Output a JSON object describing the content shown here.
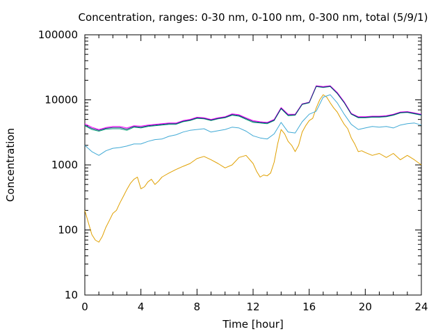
{
  "chart_data": {
    "type": "line",
    "title": "Concentration, ranges: 0-30 nm, 0-100 nm, 0-300 nm, total (5/9/1)",
    "xlabel": "Time [hour]",
    "ylabel": "Concentration",
    "xlim": [
      0,
      24
    ],
    "ylim": [
      10,
      100000
    ],
    "yscale": "log",
    "grid": false,
    "x_ticks": [
      "0",
      "4",
      "8",
      "12",
      "16",
      "20",
      "24"
    ],
    "y_ticks": [
      "10",
      "100",
      "1000",
      "10000",
      "100000"
    ],
    "series_colors": {
      "0-30 nm": "#e0a000",
      "0-100 nm": "#3fa9d5",
      "0-300 nm": "#009e73",
      "total": "#ff00ff",
      "total_overlay": "#1f2a80"
    },
    "series": [
      {
        "key": "0-30 nm",
        "color": "#e0a000",
        "x": [
          0,
          0.25,
          0.5,
          0.75,
          1.0,
          1.25,
          1.5,
          1.75,
          2.0,
          2.25,
          2.5,
          2.75,
          3.0,
          3.25,
          3.5,
          3.75,
          4.0,
          4.25,
          4.5,
          4.75,
          5.0,
          5.25,
          5.5,
          5.75,
          6.0,
          6.5,
          7.0,
          7.5,
          8.0,
          8.5,
          9.0,
          9.5,
          10.0,
          10.5,
          11.0,
          11.5,
          12.0,
          12.25,
          12.5,
          12.75,
          13.0,
          13.25,
          13.5,
          13.75,
          14.0,
          14.25,
          14.5,
          14.75,
          15.0,
          15.25,
          15.5,
          15.75,
          16.0,
          16.25,
          16.5,
          16.75,
          17.0,
          17.25,
          17.5,
          17.75,
          18.0,
          18.25,
          18.5,
          18.75,
          19.0,
          19.25,
          19.5,
          19.75,
          20.0,
          20.5,
          21.0,
          21.5,
          22.0,
          22.5,
          23.0,
          23.5,
          24.0
        ],
        "y": [
          200,
          130,
          85,
          70,
          65,
          80,
          110,
          140,
          180,
          200,
          260,
          330,
          420,
          520,
          600,
          650,
          430,
          460,
          550,
          600,
          500,
          560,
          650,
          700,
          750,
          850,
          950,
          1050,
          1250,
          1350,
          1200,
          1050,
          900,
          1000,
          1300,
          1400,
          1050,
          800,
          650,
          700,
          680,
          750,
          1100,
          2100,
          3500,
          3000,
          2300,
          2000,
          1600,
          2000,
          3200,
          4000,
          4800,
          5200,
          7500,
          10000,
          12000,
          11000,
          9000,
          7500,
          6500,
          5200,
          4200,
          3600,
          2600,
          2100,
          1600,
          1650,
          1550,
          1400,
          1500,
          1300,
          1500,
          1200,
          1400,
          1200,
          1000
        ]
      },
      {
        "key": "0-100 nm",
        "color": "#3fa9d5",
        "x": [
          0,
          0.5,
          1.0,
          1.5,
          2.0,
          2.5,
          3.0,
          3.5,
          4.0,
          4.5,
          5.0,
          5.5,
          6.0,
          6.5,
          7.0,
          7.5,
          8.0,
          8.5,
          9.0,
          9.5,
          10.0,
          10.5,
          11.0,
          11.5,
          12.0,
          12.5,
          13.0,
          13.5,
          14.0,
          14.5,
          15.0,
          15.5,
          16.0,
          16.5,
          17.0,
          17.5,
          18.0,
          18.5,
          19.0,
          19.5,
          20.0,
          20.5,
          21.0,
          21.5,
          22.0,
          22.5,
          23.0,
          23.5,
          24.0
        ],
        "y": [
          2000,
          1600,
          1400,
          1650,
          1800,
          1850,
          1950,
          2100,
          2100,
          2300,
          2450,
          2500,
          2750,
          2900,
          3200,
          3400,
          3500,
          3600,
          3200,
          3350,
          3500,
          3800,
          3700,
          3300,
          2800,
          2600,
          2500,
          3000,
          4500,
          3200,
          3100,
          4600,
          6000,
          6700,
          11000,
          12000,
          9000,
          6000,
          4200,
          3500,
          3700,
          3900,
          3800,
          3900,
          3700,
          4100,
          4300,
          4400,
          4100
        ]
      },
      {
        "key": "0-300 nm",
        "color": "#009e73",
        "x": [
          0,
          0.5,
          1.0,
          1.5,
          2.0,
          2.5,
          3.0,
          3.5,
          4.0,
          4.5,
          5.0,
          5.5,
          6.0,
          6.5,
          7.0,
          7.5,
          8.0,
          8.5,
          9.0,
          9.5,
          10.0,
          10.5,
          11.0,
          11.5,
          12.0,
          12.5,
          13.0,
          13.5,
          14.0,
          14.5,
          15.0,
          15.5,
          16.0,
          16.5,
          17.0,
          17.5,
          18.0,
          18.5,
          19.0,
          19.5,
          20.0,
          20.5,
          21.0,
          21.5,
          22.0,
          22.5,
          23.0,
          23.5,
          24.0
        ],
        "y": [
          4000,
          3500,
          3300,
          3550,
          3600,
          3600,
          3400,
          3800,
          3700,
          3900,
          4000,
          4100,
          4200,
          4200,
          4600,
          4800,
          5200,
          5100,
          4800,
          5100,
          5300,
          5800,
          5600,
          5000,
          4500,
          4400,
          4300,
          4800,
          7300,
          5700,
          5800,
          8500,
          9000,
          16000,
          15500,
          16000,
          12500,
          9000,
          6000,
          5300,
          5300,
          5400,
          5400,
          5500,
          5800,
          6300,
          6400,
          6100,
          5800
        ]
      },
      {
        "key": "total",
        "color": "#ff00ff",
        "x": [
          0,
          0.5,
          1.0,
          1.5,
          2.0,
          2.5,
          3.0,
          3.5,
          4.0,
          4.5,
          5.0,
          5.5,
          6.0,
          6.5,
          7.0,
          7.5,
          8.0,
          8.5,
          9.0,
          9.5,
          10.0,
          10.5,
          11.0,
          11.5,
          12.0,
          12.5,
          13.0,
          13.5,
          14.0,
          14.5,
          15.0,
          15.5,
          16.0,
          16.5,
          17.0,
          17.5,
          18.0,
          18.5,
          19.0,
          19.5,
          20.0,
          20.5,
          21.0,
          21.5,
          22.0,
          22.5,
          23.0,
          23.5,
          24.0
        ],
        "y": [
          4300,
          3800,
          3500,
          3750,
          3900,
          3900,
          3700,
          4000,
          3950,
          4100,
          4200,
          4300,
          4400,
          4400,
          4800,
          5000,
          5400,
          5300,
          5000,
          5300,
          5500,
          6100,
          5900,
          5300,
          4800,
          4600,
          4500,
          5000,
          7600,
          6000,
          6000,
          8700,
          9200,
          16500,
          16000,
          16500,
          13000,
          9300,
          6200,
          5500,
          5500,
          5600,
          5600,
          5700,
          6000,
          6500,
          6600,
          6300,
          6000
        ]
      },
      {
        "key": "total_overlay",
        "color": "#1f2a80",
        "x": [
          0,
          0.5,
          1.0,
          1.5,
          2.0,
          2.5,
          3.0,
          3.5,
          4.0,
          4.5,
          5.0,
          5.5,
          6.0,
          6.5,
          7.0,
          7.5,
          8.0,
          8.5,
          9.0,
          9.5,
          10.0,
          10.5,
          11.0,
          11.5,
          12.0,
          12.5,
          13.0,
          13.5,
          14.0,
          14.5,
          15.0,
          15.5,
          16.0,
          16.5,
          17.0,
          17.5,
          18.0,
          18.5,
          19.0,
          19.5,
          20.0,
          20.5,
          21.0,
          21.5,
          22.0,
          22.5,
          23.0,
          23.5,
          24.0
        ],
        "y": [
          4100,
          3650,
          3400,
          3650,
          3750,
          3750,
          3550,
          3900,
          3800,
          4000,
          4100,
          4200,
          4300,
          4300,
          4700,
          4900,
          5300,
          5200,
          4900,
          5200,
          5400,
          5950,
          5750,
          5150,
          4650,
          4500,
          4400,
          4900,
          7450,
          5850,
          5900,
          8600,
          9100,
          16200,
          15700,
          16200,
          12700,
          9100,
          6100,
          5400,
          5400,
          5500,
          5500,
          5600,
          5900,
          6400,
          6500,
          6200,
          5900
        ]
      }
    ]
  }
}
